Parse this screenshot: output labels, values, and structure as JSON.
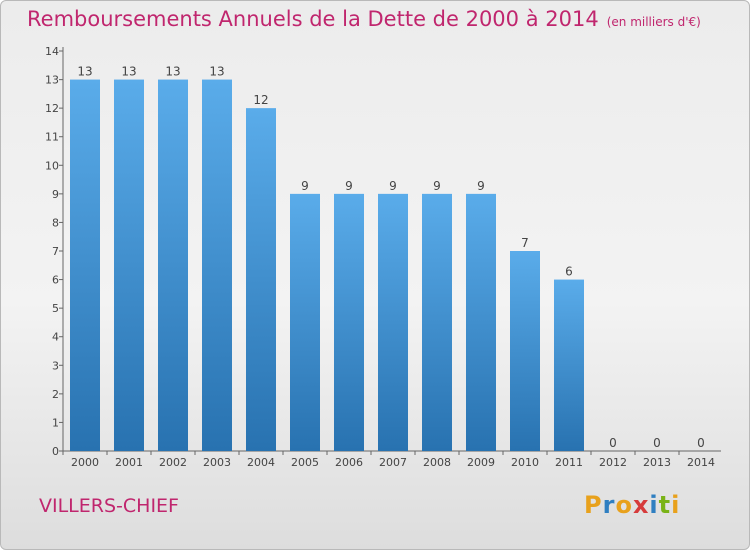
{
  "header": {
    "title": "Remboursements Annuels de la Dette de 2000 à 2014",
    "unit": "(en milliers d'€)"
  },
  "footer": {
    "commune": "VILLERS-CHIEF",
    "logo": "Proxiti"
  },
  "colors": {
    "accent": "#c0266e",
    "bar_top": "#5aacea",
    "bar_bottom": "#2872b0",
    "logo_letters": [
      "#e8a11c",
      "#2f7fc1",
      "#e8a11c",
      "#d63b3b",
      "#2f7fc1",
      "#7ab317",
      "#e8a11c"
    ]
  },
  "chart_data": {
    "type": "bar",
    "title": "Remboursements Annuels de la Dette de 2000 à 2014",
    "subtitle": "(en milliers d'€)",
    "categories": [
      "2000",
      "2001",
      "2002",
      "2003",
      "2004",
      "2005",
      "2006",
      "2007",
      "2008",
      "2009",
      "2010",
      "2011",
      "2012",
      "2013",
      "2014"
    ],
    "values": [
      13,
      13,
      13,
      13,
      12,
      9,
      9,
      9,
      9,
      9,
      7,
      6,
      0,
      0,
      0
    ],
    "ylim": [
      0,
      14
    ],
    "yticks": [
      0,
      1,
      2,
      3,
      4,
      5,
      6,
      7,
      8,
      9,
      10,
      11,
      12,
      13,
      14
    ],
    "grid": false,
    "legend": "none"
  }
}
